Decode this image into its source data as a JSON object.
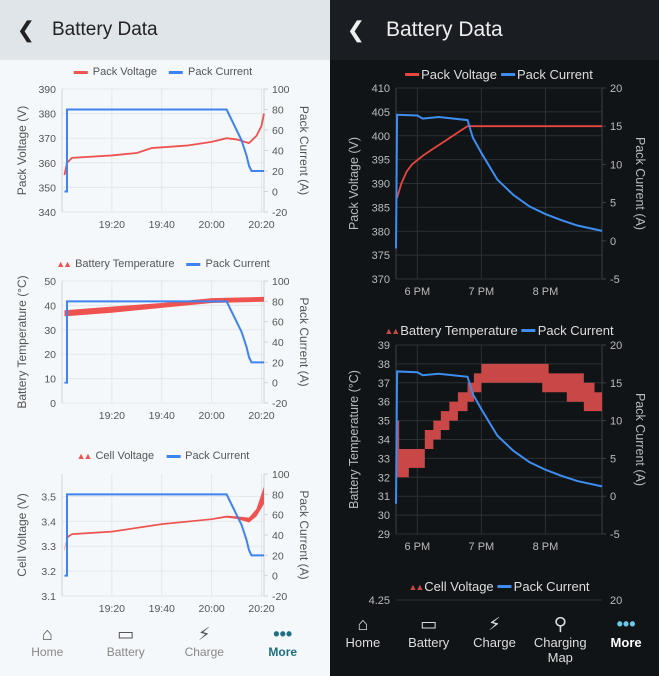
{
  "light": {
    "header": {
      "title": "Battery Data",
      "back_icon": "chevron-left-icon"
    },
    "colors": {
      "voltage": "#ef5350",
      "current": "#3f83f0",
      "accent": "#1f6f80"
    },
    "nav": [
      {
        "label": "Home",
        "icon": "home-icon",
        "active": false
      },
      {
        "label": "Battery",
        "icon": "battery-icon",
        "active": false
      },
      {
        "label": "Charge",
        "icon": "lightning-icon",
        "active": false
      },
      {
        "label": "More",
        "icon": "more-dots-icon",
        "active": true
      }
    ],
    "chart_data": [
      {
        "type": "line",
        "legend": [
          {
            "name": "Pack Voltage",
            "marker": "line"
          },
          {
            "name": "Pack Current",
            "marker": "line"
          }
        ],
        "ylabel": "Pack Voltage (V)",
        "y2label": "Pack Current (A)",
        "xlim": [
          "19:00",
          "20:21"
        ],
        "xticks": [
          "19:20",
          "19:40",
          "20:00",
          "20:20"
        ],
        "ylim": [
          340,
          390
        ],
        "yticks": [
          340,
          350,
          360,
          370,
          380,
          390
        ],
        "y2lim": [
          -20,
          100
        ],
        "y2ticks": [
          -20,
          0,
          20,
          40,
          60,
          80,
          100
        ],
        "grid": true,
        "series": [
          {
            "name": "Pack Voltage",
            "axis": "left",
            "kind": "line",
            "points": [
              [
                "19:01",
                355
              ],
              [
                "19:02",
                360
              ],
              [
                "19:04",
                362
              ],
              [
                "19:20",
                363
              ],
              [
                "19:30",
                364
              ],
              [
                "19:36",
                366
              ],
              [
                "19:50",
                367
              ],
              [
                "20:00",
                368.5
              ],
              [
                "20:06",
                370
              ],
              [
                "20:10",
                369.5
              ],
              [
                "20:15",
                368
              ],
              [
                "20:18",
                371
              ],
              [
                "20:20",
                375
              ],
              [
                "20:21",
                380
              ]
            ]
          },
          {
            "name": "Pack Current",
            "axis": "right",
            "kind": "line",
            "points": [
              [
                "19:01",
                0
              ],
              [
                "19:02",
                0
              ],
              [
                "19:02",
                80
              ],
              [
                "20:06",
                80
              ],
              [
                "20:08",
                70
              ],
              [
                "20:10",
                60
              ],
              [
                "20:12",
                50
              ],
              [
                "20:14",
                35
              ],
              [
                "20:15",
                25
              ],
              [
                "20:16",
                20
              ],
              [
                "20:21",
                20
              ]
            ]
          }
        ]
      },
      {
        "type": "area",
        "legend": [
          {
            "name": "Battery Temperature",
            "marker": "band"
          },
          {
            "name": "Pack Current",
            "marker": "line"
          }
        ],
        "ylabel": "Battery Temperature (°C)",
        "y2label": "Pack Current (A)",
        "xlim": [
          "19:00",
          "20:21"
        ],
        "xticks": [
          "19:20",
          "19:40",
          "20:00",
          "20:20"
        ],
        "ylim": [
          0,
          50
        ],
        "yticks": [
          0,
          10,
          20,
          30,
          40,
          50
        ],
        "y2lim": [
          -20,
          100
        ],
        "y2ticks": [
          -20,
          0,
          20,
          40,
          60,
          80,
          100
        ],
        "grid": true,
        "series": [
          {
            "name": "Battery Temperature",
            "axis": "left",
            "kind": "band",
            "points": [
              [
                "19:01",
                35.5,
                38
              ],
              [
                "19:20",
                37,
                39.5
              ],
              [
                "19:40",
                39,
                41
              ],
              [
                "20:00",
                41,
                43
              ],
              [
                "20:21",
                41.5,
                43.5
              ]
            ]
          },
          {
            "name": "Pack Current",
            "axis": "right",
            "kind": "line",
            "points": [
              [
                "19:01",
                0
              ],
              [
                "19:02",
                0
              ],
              [
                "19:02",
                80
              ],
              [
                "20:06",
                80
              ],
              [
                "20:08",
                70
              ],
              [
                "20:10",
                60
              ],
              [
                "20:12",
                50
              ],
              [
                "20:14",
                35
              ],
              [
                "20:15",
                25
              ],
              [
                "20:16",
                20
              ],
              [
                "20:21",
                20
              ]
            ]
          }
        ]
      },
      {
        "type": "area",
        "legend": [
          {
            "name": "Cell Voltage",
            "marker": "band"
          },
          {
            "name": "Pack Current",
            "marker": "line"
          }
        ],
        "ylabel": "Cell Voltage (V)",
        "y2label": "Pack Current (A)",
        "xlim": [
          "19:00",
          "20:21"
        ],
        "xticks": [
          "19:20",
          "19:40",
          "20:00",
          "20:20"
        ],
        "ylim": [
          3.1,
          3.59
        ],
        "yticks": [
          3.1,
          3.2,
          3.3,
          3.4,
          3.5
        ],
        "y2lim": [
          -20,
          100
        ],
        "y2ticks": [
          -20,
          0,
          20,
          40,
          60,
          80,
          100
        ],
        "grid": true,
        "series": [
          {
            "name": "Cell Voltage",
            "axis": "left",
            "kind": "band",
            "points": [
              [
                "19:01",
                3.28,
                3.29
              ],
              [
                "19:02",
                3.33,
                3.34
              ],
              [
                "19:04",
                3.345,
                3.352
              ],
              [
                "19:20",
                3.355,
                3.362
              ],
              [
                "19:30",
                3.37,
                3.377
              ],
              [
                "19:40",
                3.385,
                3.392
              ],
              [
                "20:00",
                3.405,
                3.412
              ],
              [
                "20:06",
                3.415,
                3.423
              ],
              [
                "20:10",
                3.41,
                3.42
              ],
              [
                "20:15",
                3.395,
                3.415
              ],
              [
                "20:18",
                3.42,
                3.45
              ],
              [
                "20:21",
                3.47,
                3.54
              ]
            ]
          },
          {
            "name": "Pack Current",
            "axis": "right",
            "kind": "line",
            "points": [
              [
                "19:01",
                0
              ],
              [
                "19:02",
                0
              ],
              [
                "19:02",
                80
              ],
              [
                "20:06",
                80
              ],
              [
                "20:08",
                70
              ],
              [
                "20:10",
                60
              ],
              [
                "20:12",
                50
              ],
              [
                "20:14",
                35
              ],
              [
                "20:15",
                25
              ],
              [
                "20:16",
                20
              ],
              [
                "20:21",
                20
              ]
            ]
          }
        ]
      }
    ]
  },
  "dark": {
    "header": {
      "title": "Battery Data",
      "back_icon": "chevron-left-icon"
    },
    "colors": {
      "voltage": "#e8463f",
      "temperature": "#c94747",
      "current": "#3d8ef0",
      "accent": "#6cc7e8"
    },
    "nav": [
      {
        "label": "Home",
        "icon": "home-icon",
        "active": false
      },
      {
        "label": "Battery",
        "icon": "battery-icon",
        "active": false
      },
      {
        "label": "Charge",
        "icon": "lightning-icon",
        "active": false
      },
      {
        "label": "Charging Map",
        "icon": "map-pin-icon",
        "active": false
      },
      {
        "label": "More",
        "icon": "more-dots-icon",
        "active": true
      }
    ],
    "chart_data": [
      {
        "type": "line",
        "legend": [
          {
            "name": "Pack Voltage",
            "marker": "line"
          },
          {
            "name": "Pack Current",
            "marker": "line"
          }
        ],
        "ylabel": "Pack Voltage (V)",
        "y2label": "Pack Current (A)",
        "xlim": [
          "17:40",
          "20:53"
        ],
        "xticks": [
          {
            "t": "18:00",
            "label": "6 PM"
          },
          {
            "t": "19:00",
            "label": "7 PM"
          },
          {
            "t": "20:00",
            "label": "8 PM"
          }
        ],
        "ylim": [
          370,
          410
        ],
        "yticks": [
          370,
          375,
          380,
          385,
          390,
          395,
          400,
          405,
          410
        ],
        "y2lim": [
          -5,
          20
        ],
        "y2ticks": [
          -5,
          0,
          5,
          10,
          15,
          20
        ],
        "grid": true,
        "series": [
          {
            "name": "Pack Voltage",
            "axis": "left",
            "kind": "line",
            "points": [
              [
                "17:41",
                387
              ],
              [
                "17:45",
                390
              ],
              [
                "17:50",
                392.5
              ],
              [
                "17:55",
                394
              ],
              [
                "18:05",
                395.8
              ],
              [
                "18:15",
                397.3
              ],
              [
                "18:30",
                399.5
              ],
              [
                "18:40",
                401
              ],
              [
                "18:47",
                402
              ],
              [
                "19:00",
                402
              ],
              [
                "20:53",
                402
              ]
            ]
          },
          {
            "name": "Pack Current",
            "axis": "right",
            "kind": "line",
            "points": [
              [
                "17:40",
                -1
              ],
              [
                "17:41",
                16.5
              ],
              [
                "18:00",
                16.4
              ],
              [
                "18:05",
                16
              ],
              [
                "18:20",
                16.2
              ],
              [
                "18:47",
                15.8
              ],
              [
                "18:52",
                13.5
              ],
              [
                "19:00",
                11.5
              ],
              [
                "19:15",
                8
              ],
              [
                "19:30",
                6
              ],
              [
                "19:45",
                4.5
              ],
              [
                "20:00",
                3.5
              ],
              [
                "20:15",
                2.7
              ],
              [
                "20:30",
                2
              ],
              [
                "20:53",
                1.3
              ]
            ]
          }
        ]
      },
      {
        "type": "area",
        "legend": [
          {
            "name": "Battery Temperature",
            "marker": "band"
          },
          {
            "name": "Pack Current",
            "marker": "line"
          }
        ],
        "ylabel": "Battery Temperature (°C)",
        "y2label": "Pack Current (A)",
        "xlim": [
          "17:40",
          "20:53"
        ],
        "xticks": [
          {
            "t": "18:00",
            "label": "6 PM"
          },
          {
            "t": "19:00",
            "label": "7 PM"
          },
          {
            "t": "20:00",
            "label": "8 PM"
          }
        ],
        "ylim": [
          29,
          39
        ],
        "yticks": [
          29,
          30,
          31,
          32,
          33,
          34,
          35,
          36,
          37,
          38,
          39
        ],
        "y2lim": [
          -5,
          20
        ],
        "y2ticks": [
          -5,
          0,
          5,
          10,
          15,
          20
        ],
        "grid": true,
        "series": [
          {
            "name": "Battery Temperature",
            "axis": "left",
            "kind": "band",
            "step": true,
            "points": [
              [
                "17:41",
                32,
                35
              ],
              [
                "17:43",
                32,
                33.5
              ],
              [
                "17:52",
                32.5,
                33.5
              ],
              [
                "18:07",
                33.5,
                34.5
              ],
              [
                "18:15",
                34,
                35
              ],
              [
                "18:22",
                34.5,
                35.5
              ],
              [
                "18:30",
                35,
                36
              ],
              [
                "18:38",
                35.5,
                36.5
              ],
              [
                "18:47",
                36,
                37
              ],
              [
                "18:53",
                36.5,
                37.5
              ],
              [
                "19:00",
                37,
                38
              ],
              [
                "19:57",
                36.5,
                38
              ],
              [
                "20:03",
                36.5,
                37.5
              ],
              [
                "20:20",
                36,
                37.5
              ],
              [
                "20:36",
                35.5,
                37
              ],
              [
                "20:46",
                35.5,
                36.5
              ],
              [
                "20:53",
                35.5,
                36.5
              ]
            ]
          },
          {
            "name": "Pack Current",
            "axis": "right",
            "kind": "line",
            "points": [
              [
                "17:40",
                -1
              ],
              [
                "17:41",
                16.5
              ],
              [
                "18:00",
                16.4
              ],
              [
                "18:05",
                16
              ],
              [
                "18:20",
                16.2
              ],
              [
                "18:47",
                15.8
              ],
              [
                "18:52",
                13.5
              ],
              [
                "19:00",
                11.5
              ],
              [
                "19:15",
                8
              ],
              [
                "19:30",
                6
              ],
              [
                "19:45",
                4.5
              ],
              [
                "20:00",
                3.5
              ],
              [
                "20:15",
                2.7
              ],
              [
                "20:30",
                2
              ],
              [
                "20:53",
                1.3
              ]
            ]
          }
        ]
      },
      {
        "type": "area",
        "legend": [
          {
            "name": "Cell Voltage",
            "marker": "band"
          },
          {
            "name": "Pack Current",
            "marker": "line"
          }
        ],
        "yticks_visible": [
          "4.25"
        ],
        "y2ticks_visible": [
          "20"
        ],
        "series": []
      }
    ]
  }
}
